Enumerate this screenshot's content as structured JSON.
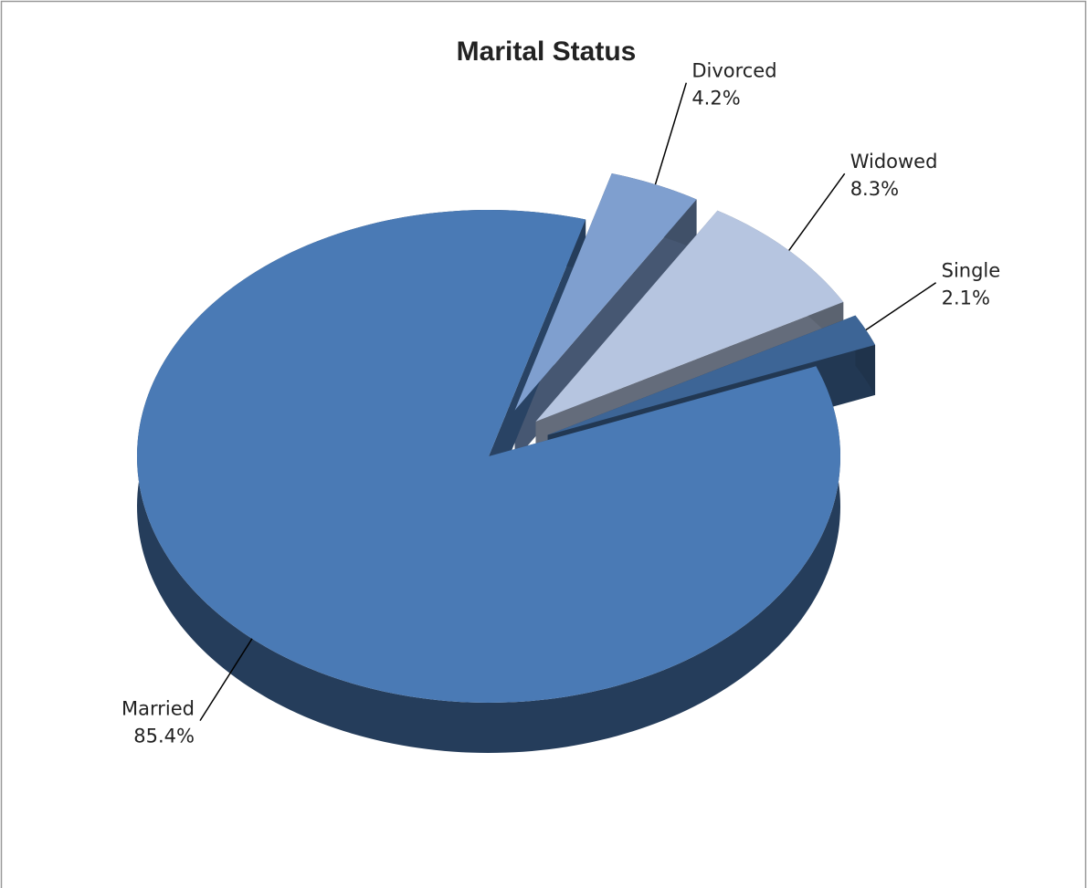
{
  "chart_data": {
    "type": "pie",
    "title": "Marital Status",
    "categories": [
      "Divorced",
      "Widowed",
      "Single",
      "Married"
    ],
    "values": [
      4.2,
      8.3,
      2.1,
      85.4
    ],
    "value_labels": [
      "4.2%",
      "8.3%",
      "2.1%",
      "85.4%"
    ],
    "colors": [
      "#7f9fcf",
      "#b6c5e0",
      "#3d6596",
      "#4a7ab5"
    ]
  }
}
